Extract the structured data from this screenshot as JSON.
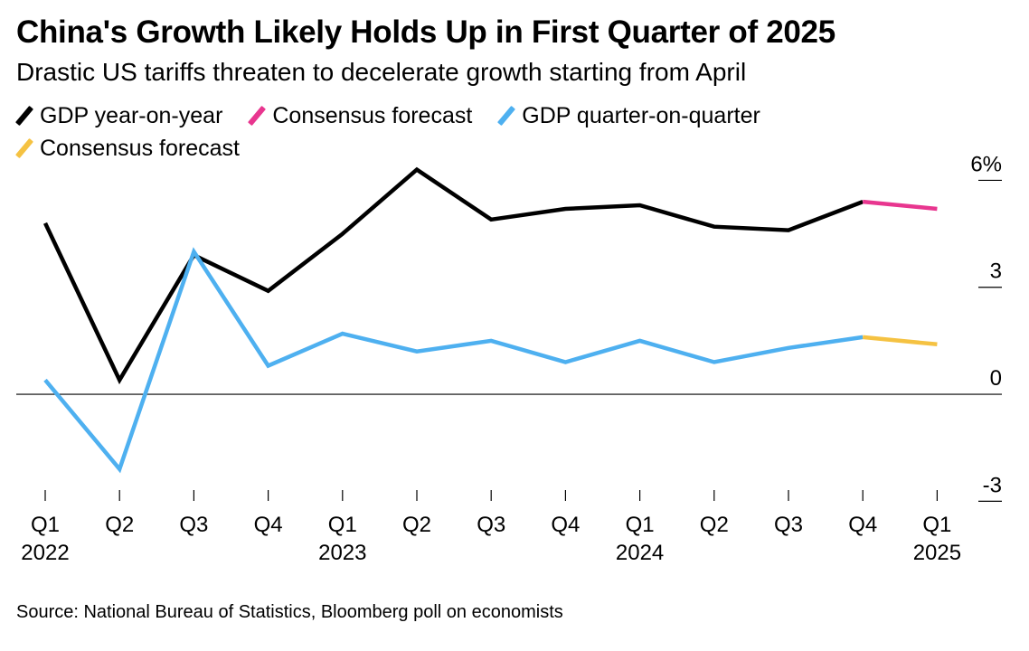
{
  "title": "China's Growth Likely Holds Up in First Quarter of 2025",
  "subtitle": "Drastic US tariffs threaten to decelerate growth starting from April",
  "source": "Source: National Bureau of Statistics, Bloomberg poll on economists",
  "legend": [
    {
      "label": "GDP year-on-year",
      "color": "#000000"
    },
    {
      "label": "Consensus forecast",
      "color": "#e8368f"
    },
    {
      "label": "GDP quarter-on-quarter",
      "color": "#4eb0f0"
    },
    {
      "label": "Consensus forecast",
      "color": "#f5c242"
    }
  ],
  "chart_data": {
    "type": "line",
    "categories": [
      "Q1 2022",
      "Q2 2022",
      "Q3 2022",
      "Q4 2022",
      "Q1 2023",
      "Q2 2023",
      "Q3 2023",
      "Q4 2023",
      "Q1 2024",
      "Q2 2024",
      "Q3 2024",
      "Q4 2024",
      "Q1 2025"
    ],
    "x_tick_labels": [
      "Q1",
      "Q2",
      "Q3",
      "Q4",
      "Q1",
      "Q2",
      "Q3",
      "Q4",
      "Q1",
      "Q2",
      "Q3",
      "Q4",
      "Q1"
    ],
    "x_year_labels": [
      {
        "index": 0,
        "label": "2022"
      },
      {
        "index": 4,
        "label": "2023"
      },
      {
        "index": 8,
        "label": "2024"
      },
      {
        "index": 12,
        "label": "2025"
      }
    ],
    "y_ticks": [
      6,
      3,
      0,
      -3
    ],
    "y_tick_labels": [
      "6%",
      "3",
      "0",
      "-3"
    ],
    "ylim": [
      -3.6,
      7
    ],
    "y_axis_side": "right",
    "zero_line": true,
    "series": [
      {
        "name": "GDP year-on-year",
        "color": "#000000",
        "values": [
          4.8,
          0.4,
          3.9,
          2.9,
          4.5,
          6.3,
          4.9,
          5.2,
          5.3,
          4.7,
          4.6,
          5.4,
          null
        ]
      },
      {
        "name": "Consensus forecast",
        "color": "#e8368f",
        "values": [
          null,
          null,
          null,
          null,
          null,
          null,
          null,
          null,
          null,
          null,
          null,
          5.4,
          5.2
        ]
      },
      {
        "name": "GDP quarter-on-quarter",
        "color": "#4eb0f0",
        "values": [
          0.4,
          -2.1,
          4.0,
          0.8,
          1.7,
          1.2,
          1.5,
          0.9,
          1.5,
          0.9,
          1.3,
          1.6,
          null
        ]
      },
      {
        "name": "Consensus forecast",
        "color": "#f5c242",
        "values": [
          null,
          null,
          null,
          null,
          null,
          null,
          null,
          null,
          null,
          null,
          null,
          1.6,
          1.4
        ]
      }
    ]
  }
}
